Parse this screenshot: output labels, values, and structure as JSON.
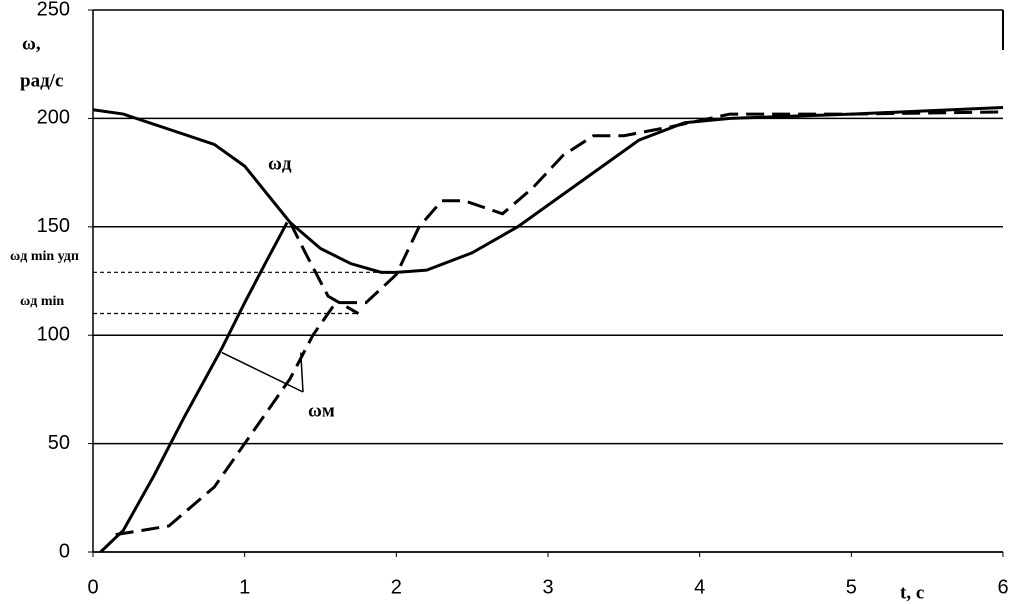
{
  "chart_data": {
    "type": "line",
    "y_label_1": "ω,",
    "y_label_2": "рад/с",
    "x_label": "t, с",
    "xlim": [
      0,
      6
    ],
    "xticks": [
      0,
      1,
      2,
      3,
      4,
      5,
      6
    ],
    "ylim": [
      0,
      250
    ],
    "yticks": [
      0,
      50,
      100,
      150,
      200,
      250
    ],
    "grid": true,
    "series": [
      {
        "color": "#000000",
        "dashed": false,
        "x": [
          0,
          0.2,
          0.5,
          0.8,
          1.0,
          1.15,
          1.3,
          1.5,
          1.7,
          1.9,
          2.0,
          2.2,
          2.5,
          2.8,
          3.0,
          3.3,
          3.6,
          3.9,
          4.2,
          5,
          6
        ],
        "values": [
          204,
          202,
          195,
          188,
          178,
          165,
          152,
          140,
          133,
          129,
          129,
          130,
          138,
          150,
          160,
          175,
          190,
          198,
          200,
          202,
          205
        ]
      },
      {
        "color": "#000000",
        "dashed": false,
        "x": [
          0.05,
          0.2,
          0.4,
          0.6,
          0.85,
          1.0,
          1.15,
          1.28
        ],
        "values": [
          0,
          10,
          35,
          62,
          94,
          115,
          135,
          152
        ]
      },
      {
        "color": "#000000",
        "dashed": true,
        "x": [
          1.3,
          1.4,
          1.55,
          1.75
        ],
        "values": [
          152,
          138,
          118,
          110
        ]
      },
      {
        "color": "#000000",
        "dashed": true,
        "x": [
          0.15,
          0.5,
          0.8,
          1.05,
          1.3,
          1.45,
          1.6,
          1.8,
          2.0,
          2.15,
          2.3,
          2.45,
          2.7,
          2.9,
          3.1,
          3.3,
          3.5,
          3.8,
          4.2,
          5,
          6
        ],
        "values": [
          8,
          12,
          30,
          55,
          80,
          100,
          115,
          115,
          128,
          150,
          162,
          162,
          156,
          168,
          183,
          192,
          192,
          196,
          202,
          202,
          203
        ]
      }
    ],
    "reference_lines": [
      {
        "y": 129,
        "x_end": 1.95,
        "label": "ωд min удп"
      },
      {
        "y": 110,
        "x_end": 1.75,
        "label": "ωд min"
      }
    ],
    "annotations": [
      "ωд",
      "ωм"
    ]
  }
}
